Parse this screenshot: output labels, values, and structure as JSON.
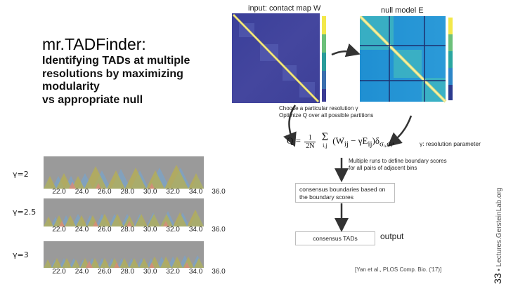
{
  "slide": {
    "title": "mr.TADFinder:",
    "subtitle_lines": [
      "Identifying TADs at multiple",
      "resolutions by maximizing",
      "modularity",
      "vs appropriate null"
    ]
  },
  "figure": {
    "contact_map_caption": "input: contact map W",
    "null_model_caption": "null model E",
    "step_text_lines": [
      "Choose a particular resolution γ",
      "Optimize Q over all possible partitions"
    ],
    "formula": {
      "lhs": "Q =",
      "frac_num": "1",
      "frac_den": "2N",
      "sum_symbol": "Σ",
      "sum_index": "i,j",
      "body": "(W",
      "body_sub_1": "ij",
      "body_mid": " − γE",
      "body_sub_2": "ij",
      "body_tail": ")δ",
      "delta_sub": "σᵢ,σⱼ",
      "tail": ","
    },
    "resolution_note": "γ: resolution parameter",
    "runs_note_lines": [
      "Multiple runs to define boundary scores",
      "for all pairs of adjacent bins"
    ],
    "consensus_boundaries_lines": [
      "consensus boundaries based on",
      "the boundary scores"
    ],
    "consensus_tads_label": "consensus TADs",
    "output_label": "output",
    "colors": {
      "arrow": "#333333",
      "triangle_yellow": "#b9b04a",
      "triangle_blue": "#7aa3c8",
      "triangle_red": "#d98a7a",
      "strip_background": "#9a9a9a"
    }
  },
  "tracks": [
    {
      "gamma_label": "γ=2",
      "ticks": [
        "22.0",
        "24.0",
        "26.0",
        "28.0",
        "30.0",
        "32.0",
        "34.0",
        "36.0"
      ]
    },
    {
      "gamma_label": "γ=2.5",
      "ticks": [
        "22.0",
        "24.0",
        "26.0",
        "28.0",
        "30.0",
        "32.0",
        "34.0",
        "36.0"
      ]
    },
    {
      "gamma_label": "γ=3",
      "ticks": [
        "22.0",
        "24.0",
        "26.0",
        "28.0",
        "30.0",
        "32.0",
        "34.0",
        "36.0"
      ]
    }
  ],
  "footer": {
    "citation": "[Yan et al., PLOS Comp. Bio. ('17)]",
    "slide_number": "33",
    "bullet": "•",
    "site": "Lectures.GersteinLab.org"
  }
}
